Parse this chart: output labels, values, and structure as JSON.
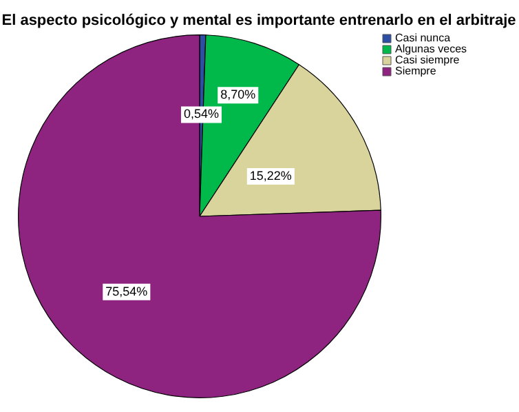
{
  "chart_data": {
    "type": "pie",
    "title": "El aspecto psicológico y mental es importante entrenarlo en el arbitraje",
    "categories": [
      "Casi nunca",
      "Algunas veces",
      "Casi siempre",
      "Siempre"
    ],
    "values": [
      0.54,
      8.7,
      15.22,
      75.54
    ],
    "colors": [
      "#2d4fa3",
      "#00b94a",
      "#d9d39c",
      "#8e2480"
    ],
    "value_labels": [
      "0,54%",
      "8,70%",
      "15,22%",
      "75,54%"
    ],
    "legend": "top right"
  }
}
